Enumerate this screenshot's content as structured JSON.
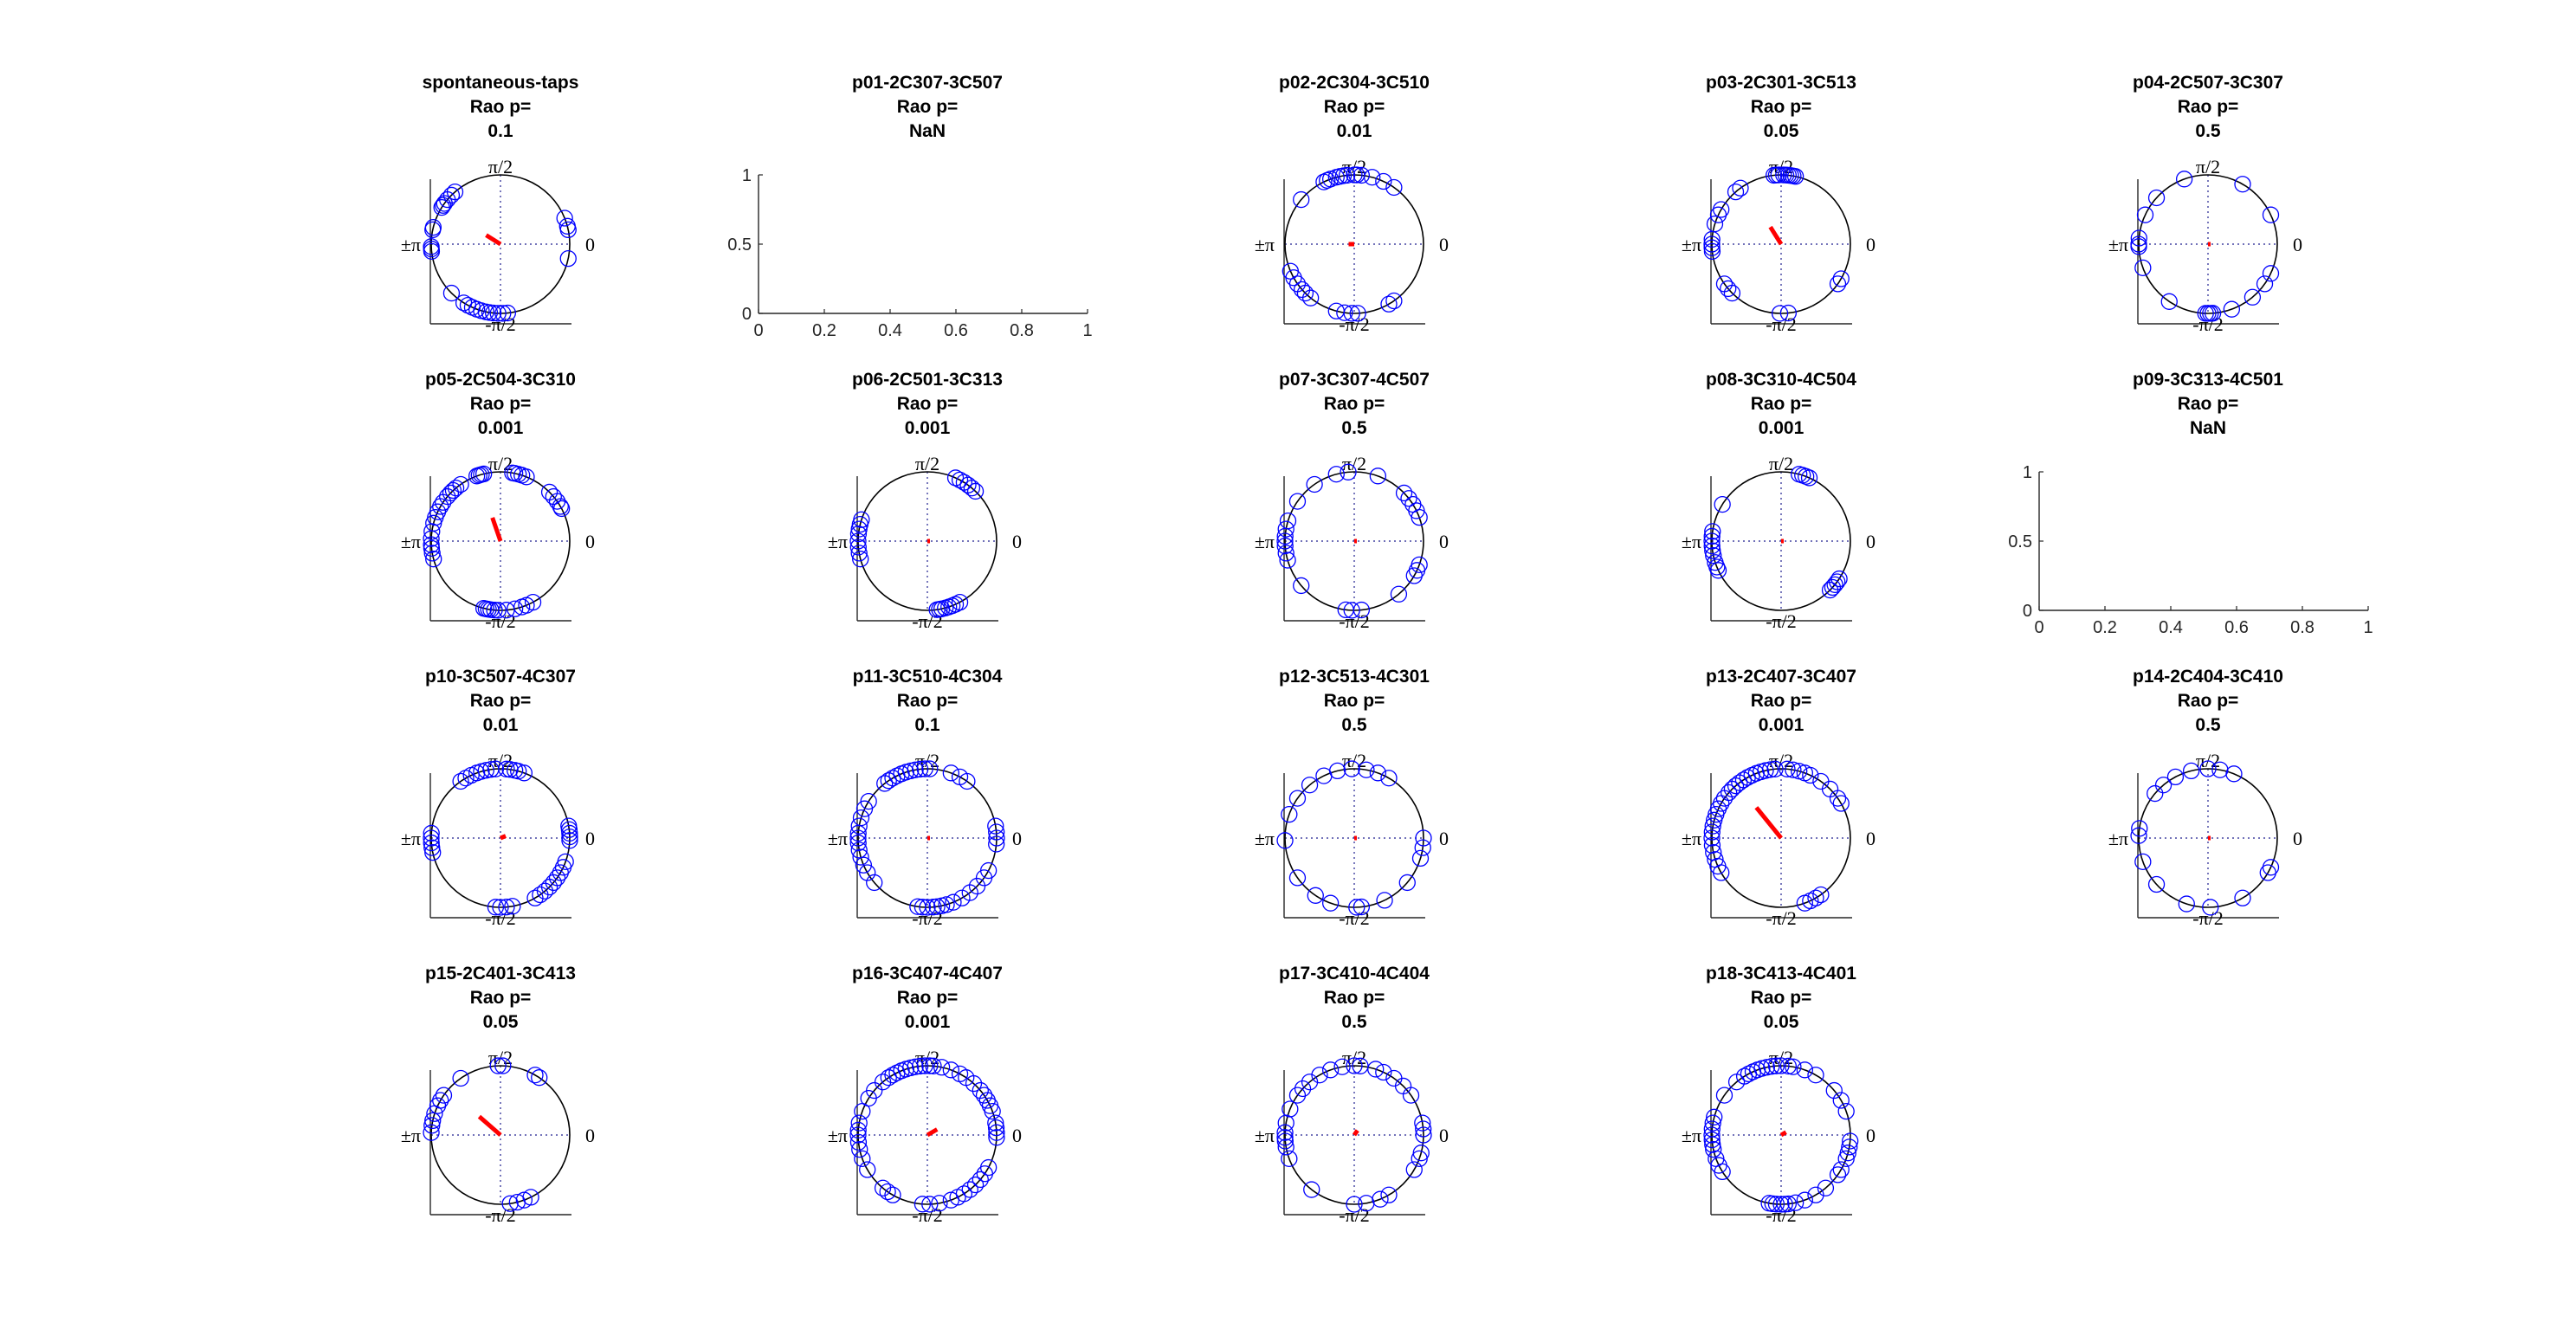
{
  "figure": {
    "background": "#ffffff",
    "colors": {
      "points": "#0000ff",
      "mean_vector": "#ff0000",
      "circle": "#000000",
      "axes_dotted": "#1f1f8f"
    }
  },
  "angle_labels": {
    "top": "π/2",
    "bottom": "-π/2",
    "right": "0",
    "left": "±π"
  },
  "chart_data": [
    {
      "type": "scatter",
      "subtype": "circular",
      "title": "spontaneous-taps",
      "stat_label": "Rao p=",
      "p": "0.1",
      "angles_deg": [
        148,
        146,
        144,
        140,
        135,
        131,
        166,
        168,
        182,
        184,
        186,
        225,
        22,
        15,
        12,
        -12,
        -84,
        -88,
        -92,
        -96,
        -99,
        -102,
        -106,
        -110,
        -114,
        -118,
        -122
      ],
      "mean_vector": {
        "angle_deg": 148,
        "length": 0.15
      }
    },
    {
      "type": "scatter",
      "subtype": "empty",
      "title": "p01-2C307-3C507",
      "stat_label": "Rao p=",
      "p": "NaN",
      "x_ticks": [
        "0",
        "0.2",
        "0.4",
        "0.6",
        "0.8",
        "1"
      ],
      "y_ticks": [
        "0",
        "0.5",
        "1"
      ],
      "xlim": [
        0,
        1
      ],
      "ylim": [
        0,
        1
      ]
    },
    {
      "type": "scatter",
      "subtype": "circular",
      "title": "p02-2C304-3C510",
      "stat_label": "Rao p=",
      "p": "0.01",
      "angles_deg": [
        96,
        99,
        102,
        105,
        110,
        113,
        116,
        90,
        88,
        84,
        75,
        65,
        55,
        140,
        203,
        209,
        215,
        221,
        225,
        231,
        255,
        262,
        268,
        273,
        300,
        305
      ],
      "mean_vector": {
        "angle_deg": 180,
        "length": 0.05
      }
    },
    {
      "type": "scatter",
      "subtype": "circular",
      "title": "p03-2C301-3C513",
      "stat_label": "Rao p=",
      "p": "0.05",
      "angles_deg": [
        78,
        80,
        82,
        84,
        86,
        88,
        92,
        94,
        96,
        126,
        131,
        150,
        155,
        163,
        176,
        180,
        183,
        186,
        215,
        220,
        225,
        269,
        276,
        325,
        330
      ],
      "mean_vector": {
        "angle_deg": 122,
        "length": 0.18
      }
    },
    {
      "type": "scatter",
      "subtype": "circular",
      "title": "p04-2C507-3C307",
      "stat_label": "Rao p=",
      "p": "0.5",
      "angles_deg": [
        25,
        60,
        110,
        138,
        155,
        175,
        180,
        182,
        200,
        236,
        268,
        270,
        272,
        274,
        290,
        310,
        325,
        335
      ],
      "mean_vector": {
        "angle_deg": 0,
        "length": 0.02
      }
    },
    {
      "type": "scatter",
      "subtype": "circular",
      "title": "p05-2C504-3C310",
      "stat_label": "Rao p=",
      "p": "0.001",
      "angles_deg": [
        104,
        106,
        108,
        110,
        125,
        130,
        133,
        136,
        140,
        146,
        150,
        155,
        160,
        165,
        172,
        178,
        183,
        186,
        190,
        195,
        80,
        78,
        75,
        72,
        68,
        45,
        40,
        35,
        30,
        28,
        256,
        258,
        260,
        262,
        265,
        268,
        275,
        282,
        288,
        292,
        298
      ],
      "mean_vector": {
        "angle_deg": 109,
        "length": 0.22
      }
    },
    {
      "type": "scatter",
      "subtype": "circular",
      "title": "p06-2C501-3C313",
      "stat_label": "Rao p=",
      "p": "0.001",
      "angles_deg": [
        162,
        166,
        170,
        174,
        180,
        185,
        190,
        195,
        66,
        62,
        58,
        54,
        50,
        46,
        278,
        280,
        282,
        285,
        288,
        291,
        294,
        298
      ],
      "mean_vector": {
        "angle_deg": 0,
        "length": 0.0
      }
    },
    {
      "type": "scatter",
      "subtype": "circular",
      "title": "p07-3C307-4C507",
      "stat_label": "Rao p=",
      "p": "0.5",
      "angles_deg": [
        95,
        105,
        125,
        145,
        163,
        170,
        176,
        180,
        184,
        190,
        196,
        220,
        263,
        268,
        276,
        310,
        330,
        335,
        340,
        20,
        26,
        32,
        38,
        44,
        70
      ],
      "mean_vector": {
        "angle_deg": 0,
        "length": 0.02
      }
    },
    {
      "type": "scatter",
      "subtype": "circular",
      "title": "p08-3C310-4C504",
      "stat_label": "Rao p=",
      "p": "0.001",
      "angles_deg": [
        75,
        72,
        69,
        66,
        148,
        172,
        176,
        180,
        184,
        188,
        192,
        198,
        202,
        205,
        315,
        318,
        321,
        324,
        327
      ],
      "mean_vector": {
        "angle_deg": 0,
        "length": 0.0
      }
    },
    {
      "type": "scatter",
      "subtype": "empty",
      "title": "p09-3C313-4C501",
      "stat_label": "Rao p=",
      "p": "NaN",
      "x_ticks": [
        "0",
        "0.2",
        "0.4",
        "0.6",
        "0.8",
        "1"
      ],
      "y_ticks": [
        "0",
        "0.5",
        "1"
      ],
      "xlim": [
        0,
        1
      ],
      "ylim": [
        0,
        1
      ]
    },
    {
      "type": "scatter",
      "subtype": "circular",
      "title": "p10-3C507-4C307",
      "stat_label": "Rao p=",
      "p": "0.01",
      "angles_deg": [
        94,
        98,
        102,
        106,
        110,
        115,
        120,
        125,
        85,
        82,
        78,
        75,
        70,
        10,
        7,
        4,
        1,
        -2,
        176,
        180,
        184,
        188,
        192,
        -20,
        -25,
        -30,
        -35,
        -40,
        -45,
        -50,
        -55,
        -60,
        -80,
        -85,
        -90,
        -94
      ],
      "mean_vector": {
        "angle_deg": 22,
        "length": 0.05
      }
    },
    {
      "type": "scatter",
      "subtype": "circular",
      "title": "p11-3C510-4C304",
      "stat_label": "Rao p=",
      "p": "0.1",
      "angles_deg": [
        88,
        92,
        96,
        100,
        104,
        108,
        112,
        116,
        120,
        124,
        128,
        70,
        62,
        55,
        148,
        155,
        163,
        170,
        176,
        180,
        184,
        190,
        196,
        203,
        210,
        220,
        262,
        266,
        270,
        275,
        278,
        282,
        286,
        292,
        300,
        308,
        316,
        325,
        332,
        10,
        5,
        0,
        -5
      ],
      "mean_vector": {
        "angle_deg": 0,
        "length": 0.0
      }
    },
    {
      "type": "scatter",
      "subtype": "circular",
      "title": "p12-3C513-4C301",
      "stat_label": "Rao p=",
      "p": "0.5",
      "angles_deg": [
        60,
        70,
        80,
        92,
        104,
        116,
        130,
        145,
        160,
        182,
        215,
        236,
        250,
        272,
        276,
        296,
        320,
        343,
        352,
        0
      ],
      "mean_vector": {
        "angle_deg": 0,
        "length": 0.0
      }
    },
    {
      "type": "scatter",
      "subtype": "circular",
      "title": "p13-2C407-3C407",
      "stat_label": "Rao p=",
      "p": "0.001",
      "angles_deg": [
        95,
        99,
        103,
        107,
        111,
        115,
        119,
        123,
        127,
        131,
        135,
        139,
        145,
        150,
        155,
        160,
        165,
        170,
        175,
        180,
        186,
        192,
        198,
        204,
        210,
        85,
        80,
        75,
        70,
        65,
        55,
        45,
        35,
        30,
        305,
        300,
        295,
        290
      ],
      "mean_vector": {
        "angle_deg": 129,
        "length": 0.35
      }
    },
    {
      "type": "scatter",
      "subtype": "circular",
      "title": "p14-2C404-3C410",
      "stat_label": "Rao p=",
      "p": "0.5",
      "angles_deg": [
        68,
        80,
        90,
        104,
        118,
        130,
        140,
        172,
        178,
        200,
        222,
        252,
        272,
        300,
        330,
        335
      ],
      "mean_vector": {
        "angle_deg": 0,
        "length": 0.0
      }
    },
    {
      "type": "scatter",
      "subtype": "circular",
      "title": "p15-2C401-3C413",
      "stat_label": "Rao p=",
      "p": "0.05",
      "angles_deg": [
        88,
        92,
        60,
        56,
        125,
        145,
        150,
        155,
        162,
        168,
        172,
        178,
        -64,
        -70,
        -76,
        -82
      ],
      "mean_vector": {
        "angle_deg": 139,
        "length": 0.25
      }
    },
    {
      "type": "scatter",
      "subtype": "circular",
      "title": "p16-3C407-4C407",
      "stat_label": "Rao p=",
      "p": "0.001",
      "angles_deg": [
        85,
        88,
        92,
        96,
        100,
        104,
        108,
        112,
        116,
        120,
        124,
        130,
        140,
        148,
        160,
        170,
        176,
        180,
        186,
        192,
        200,
        210,
        230,
        235,
        240,
        266,
        272,
        280,
        290,
        296,
        302,
        308,
        314,
        320,
        326,
        332,
        -2,
        2,
        6,
        10,
        20,
        25,
        30,
        35,
        40,
        48,
        56,
        62,
        70,
        78
      ],
      "mean_vector": {
        "angle_deg": 30,
        "length": 0.1
      }
    },
    {
      "type": "scatter",
      "subtype": "circular",
      "title": "p17-3C410-4C404",
      "stat_label": "Rao p=",
      "p": "0.5",
      "angles_deg": [
        85,
        90,
        100,
        110,
        120,
        130,
        138,
        145,
        158,
        170,
        178,
        182,
        185,
        190,
        200,
        232,
        270,
        280,
        292,
        300,
        330,
        340,
        345,
        0,
        5,
        10,
        35,
        45,
        55,
        65,
        72
      ],
      "mean_vector": {
        "angle_deg": 55,
        "length": 0.05
      }
    },
    {
      "type": "scatter",
      "subtype": "circular",
      "title": "p18-3C413-4C401",
      "stat_label": "Rao p=",
      "p": "0.05",
      "angles_deg": [
        90,
        94,
        98,
        102,
        106,
        110,
        114,
        118,
        122,
        130,
        145,
        165,
        170,
        175,
        180,
        184,
        188,
        192,
        200,
        206,
        212,
        260,
        263,
        266,
        270,
        273,
        276,
        282,
        290,
        300,
        310,
        325,
        330,
        340,
        345,
        350,
        355,
        20,
        30,
        40,
        60,
        70,
        80,
        84
      ],
      "mean_vector": {
        "angle_deg": 30,
        "length": 0.05
      }
    }
  ]
}
